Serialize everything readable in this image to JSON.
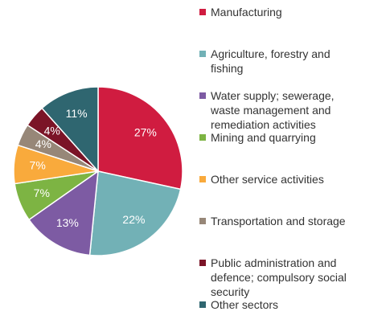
{
  "chart_data": {
    "type": "pie",
    "categories": [
      "Manufacturing",
      "Agriculture, forestry and fishing",
      "Water supply; sewerage, waste management and remediation activities",
      "Mining and quarrying",
      "Other service activities",
      "Transportation and storage",
      "Public administration and defence; compulsory social security",
      "Other sectors"
    ],
    "values": [
      27,
      22,
      13,
      7,
      7,
      4,
      4,
      11
    ],
    "value_labels": [
      "27%",
      "22%",
      "13%",
      "7%",
      "7%",
      "4%",
      "4%",
      "11%"
    ],
    "colors": [
      "#d01c40",
      "#72b1b6",
      "#7d5ba3",
      "#7db443",
      "#f9aa3c",
      "#978778",
      "#7b1427",
      "#2f6670"
    ],
    "legend": "right"
  }
}
